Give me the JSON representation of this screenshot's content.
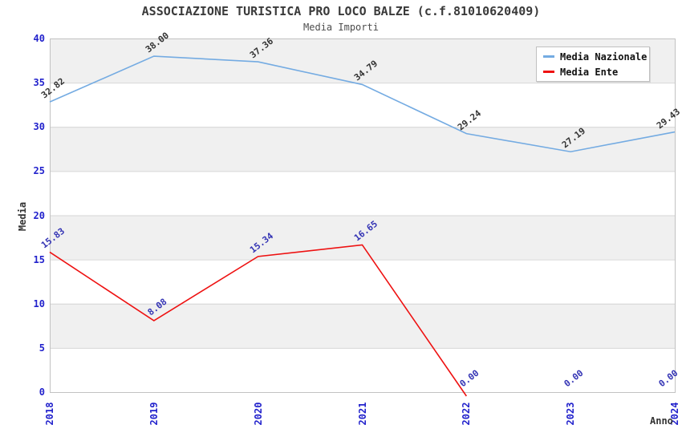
{
  "header": {
    "title": "ASSOCIAZIONE TURISTICA PRO LOCO BALZE (c.f.81010620409)",
    "subtitle": "Media Importi"
  },
  "chart_data": {
    "type": "line",
    "title": "ASSOCIAZIONE TURISTICA PRO LOCO BALZE (c.f.81010620409)",
    "subtitle": "Media Importi",
    "xlabel": "Anno",
    "ylabel": "Media",
    "categories": [
      "2018",
      "2019",
      "2020",
      "2021",
      "2022",
      "2023",
      "2024"
    ],
    "series": [
      {
        "name": "Media Nazionale",
        "color": "#74abe2",
        "label_color": "#333333",
        "values": [
          32.82,
          38.0,
          37.36,
          34.79,
          29.24,
          27.19,
          29.43
        ]
      },
      {
        "name": "Media Ente",
        "color": "#ee1111",
        "label_color": "#3333b4",
        "values": [
          15.83,
          8.08,
          15.34,
          16.65,
          0.0,
          0.0,
          0.0
        ]
      }
    ],
    "ylim": [
      0,
      40
    ],
    "y_ticks": [
      0,
      5,
      10,
      15,
      20,
      25,
      30,
      35,
      40
    ],
    "grid": "horizontal",
    "band_colors": [
      "#f0f0f0",
      "#ffffff"
    ],
    "tick_label_color": "#2222cc",
    "grid_color": "#d6d6d6",
    "plot_border_color": "#c2c2c2",
    "legend_position": "top-right",
    "value_label_format": "0.00"
  }
}
